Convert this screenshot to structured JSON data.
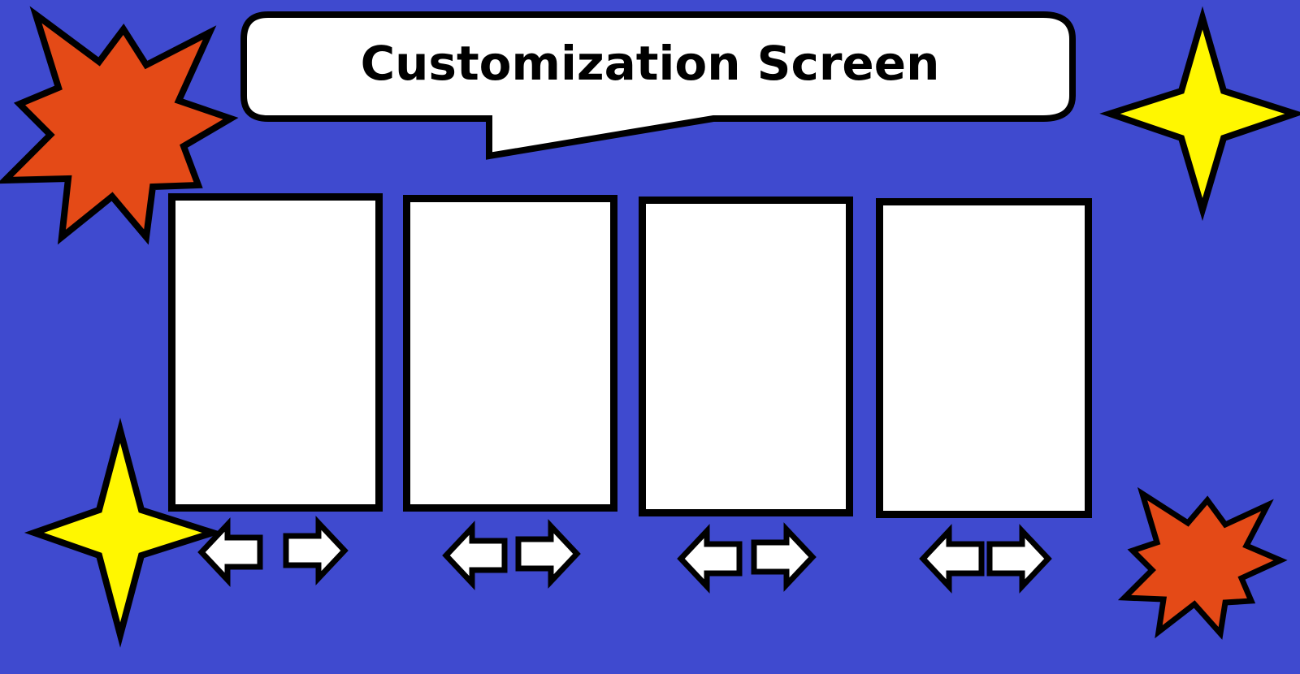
{
  "screen": {
    "title": "Customization Screen"
  },
  "colors": {
    "background": "#3f4acf",
    "burst": "#e44a17",
    "star": "#fff700",
    "outline": "#000000",
    "panel": "#ffffff"
  },
  "icons": {
    "prev": "arrow-left-icon",
    "next": "arrow-right-icon",
    "burst": "burst-icon",
    "star": "star-icon"
  },
  "slots": [
    {
      "id": 1
    },
    {
      "id": 2
    },
    {
      "id": 3
    },
    {
      "id": 4
    }
  ]
}
